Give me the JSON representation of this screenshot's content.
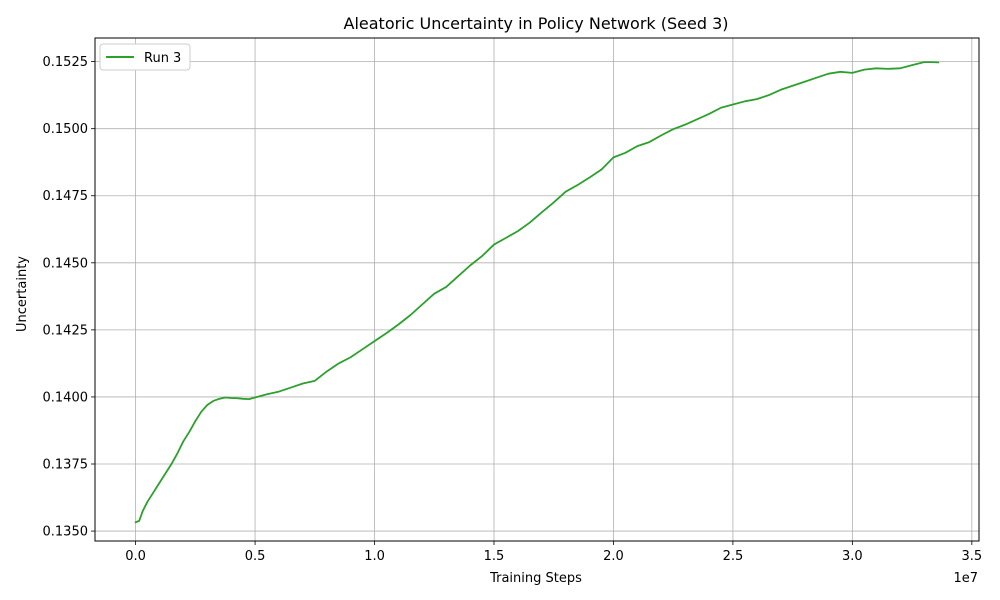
{
  "chart_data": {
    "type": "line",
    "title": "Aleatoric Uncertainty in Policy Network (Seed 3)",
    "xlabel": "Training Steps",
    "ylabel": "Uncertainty",
    "x_offset_label": "1e7",
    "xlim": [
      -1700000,
      35300000
    ],
    "ylim": [
      0.13463,
      0.15338
    ],
    "x_ticks": [
      0,
      5000000,
      10000000,
      15000000,
      20000000,
      25000000,
      30000000,
      35000000
    ],
    "x_tick_labels": [
      "0.0",
      "0.5",
      "1.0",
      "1.5",
      "2.0",
      "2.5",
      "3.0",
      "3.5"
    ],
    "y_ticks": [
      0.135,
      0.1375,
      0.14,
      0.1425,
      0.145,
      0.1475,
      0.15,
      0.1525
    ],
    "y_tick_labels": [
      "0.1350",
      "0.1375",
      "0.1400",
      "0.1425",
      "0.1450",
      "0.1475",
      "0.1500",
      "0.1525"
    ],
    "grid": true,
    "legend_position": "top-left",
    "series": [
      {
        "name": "Run 3",
        "color": "#2ca02c",
        "x": [
          0,
          150000,
          300000,
          500000,
          750000,
          1000000,
          1250000,
          1500000,
          1750000,
          2000000,
          2250000,
          2500000,
          2750000,
          3000000,
          3250000,
          3500000,
          3750000,
          4000000,
          4250000,
          4500000,
          4750000,
          5000000,
          5500000,
          6000000,
          6500000,
          7000000,
          7500000,
          8000000,
          8500000,
          9000000,
          9500000,
          10000000,
          10500000,
          11000000,
          11500000,
          12000000,
          12500000,
          13000000,
          13500000,
          14000000,
          14500000,
          15000000,
          15500000,
          16000000,
          16500000,
          17000000,
          17500000,
          18000000,
          18500000,
          19000000,
          19500000,
          20000000,
          20500000,
          21000000,
          21500000,
          22000000,
          22500000,
          23000000,
          23500000,
          24000000,
          24500000,
          25000000,
          25500000,
          26000000,
          26500000,
          27000000,
          27500000,
          28000000,
          28500000,
          29000000,
          29500000,
          30000000,
          30500000,
          31000000,
          31500000,
          32000000,
          32500000,
          33000000,
          33300000,
          33600000
        ],
        "y": [
          0.13533,
          0.13538,
          0.13575,
          0.1361,
          0.13645,
          0.1368,
          0.13715,
          0.1375,
          0.1379,
          0.13835,
          0.1387,
          0.1391,
          0.13945,
          0.1397,
          0.13985,
          0.13993,
          0.13998,
          0.13996,
          0.13995,
          0.13993,
          0.13992,
          0.13998,
          0.1401,
          0.1402,
          0.14035,
          0.1405,
          0.1406,
          0.14095,
          0.14125,
          0.14148,
          0.14178,
          0.14208,
          0.14238,
          0.1427,
          0.14305,
          0.14345,
          0.14385,
          0.1441,
          0.1445,
          0.1449,
          0.14525,
          0.14568,
          0.14593,
          0.14618,
          0.1465,
          0.14688,
          0.14725,
          0.14765,
          0.1479,
          0.14818,
          0.14848,
          0.14893,
          0.1491,
          0.14935,
          0.1495,
          0.14975,
          0.14998,
          0.15015,
          0.15035,
          0.15055,
          0.15078,
          0.1509,
          0.15102,
          0.1511,
          0.15125,
          0.15145,
          0.1516,
          0.15175,
          0.1519,
          0.15205,
          0.15212,
          0.15208,
          0.1522,
          0.15225,
          0.15223,
          0.15225,
          0.15237,
          0.15248,
          0.15248,
          0.15247
        ]
      }
    ]
  }
}
